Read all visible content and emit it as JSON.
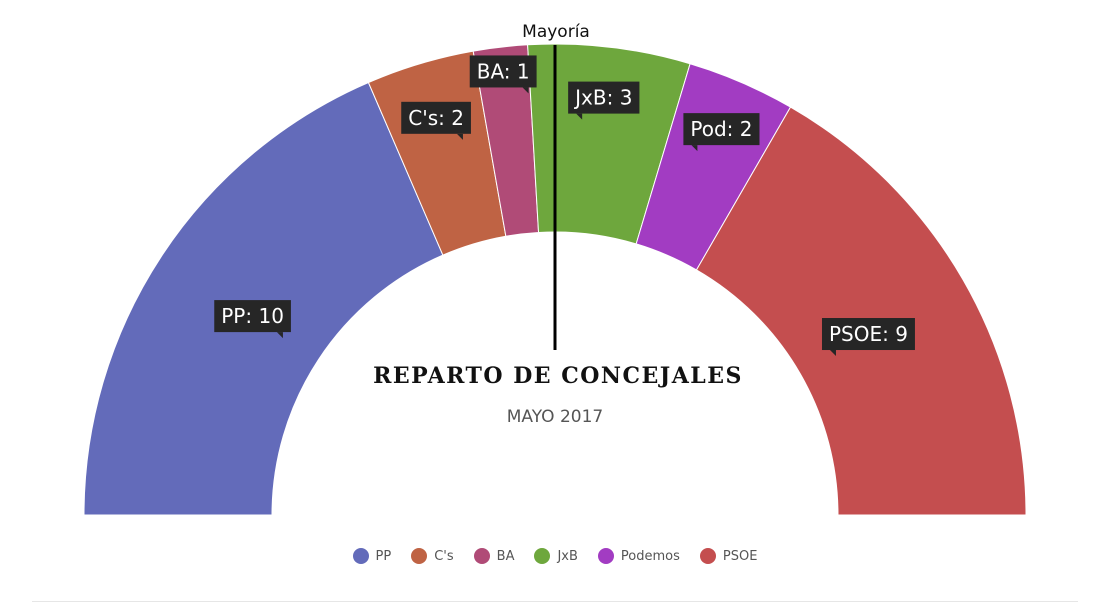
{
  "chart_data": {
    "type": "parliament-semicircle",
    "title": "REPARTO DE CONCEJALES",
    "subtitle": "MAYO 2017",
    "majority_label": "Mayoría",
    "series": [
      {
        "name": "PP",
        "label": "PP: 10",
        "value": 10,
        "color": "#636bba"
      },
      {
        "name": "C's",
        "label": "C's: 2",
        "value": 2,
        "color": "#bf6344"
      },
      {
        "name": "BA",
        "label": "BA: 1",
        "value": 1,
        "color": "#b04b77"
      },
      {
        "name": "JxB",
        "label": "JxB: 3",
        "value": 3,
        "color": "#6ea73d"
      },
      {
        "name": "Podemos",
        "label": "Pod: 2",
        "value": 2,
        "color": "#a23cc2"
      },
      {
        "name": "PSOE",
        "label": "PSOE: 9",
        "value": 9,
        "color": "#c44e4f"
      }
    ],
    "total": 27,
    "legend_position": "bottom"
  }
}
